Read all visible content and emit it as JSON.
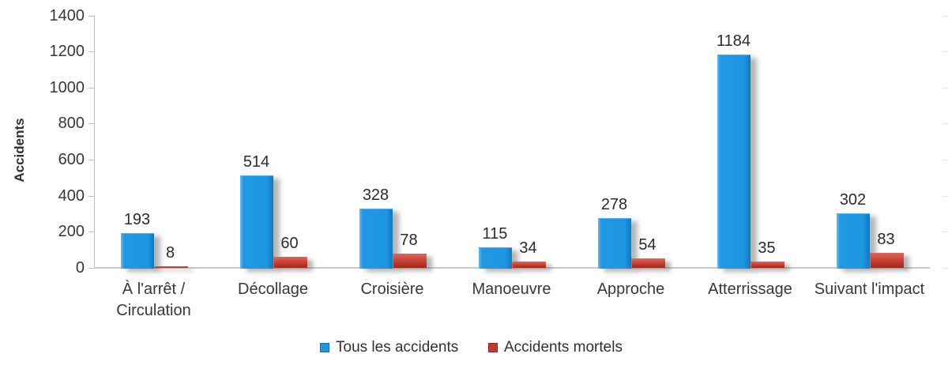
{
  "chart_data": {
    "type": "bar",
    "title": "",
    "ylabel": "Accidents",
    "xlabel": "",
    "categories": [
      "À l'arrêt / Circulation",
      "Décollage",
      "Croisière",
      "Manoeuvre",
      "Approche",
      "Atterrissage",
      "Suivant l'impact"
    ],
    "series": [
      {
        "name": "Tous les accidents",
        "color": "#1E96E2",
        "values": [
          193,
          514,
          328,
          115,
          278,
          1184,
          302
        ]
      },
      {
        "name": "Accidents mortels",
        "color": "#C0392B",
        "values": [
          8,
          60,
          78,
          34,
          54,
          35,
          83
        ]
      }
    ],
    "yticks": [
      0,
      200,
      400,
      600,
      800,
      1000,
      1200,
      1400
    ],
    "ylim": [
      0,
      1400
    ],
    "grid": false,
    "legend_position": "bottom",
    "axis_color": "#BFBFBF"
  }
}
